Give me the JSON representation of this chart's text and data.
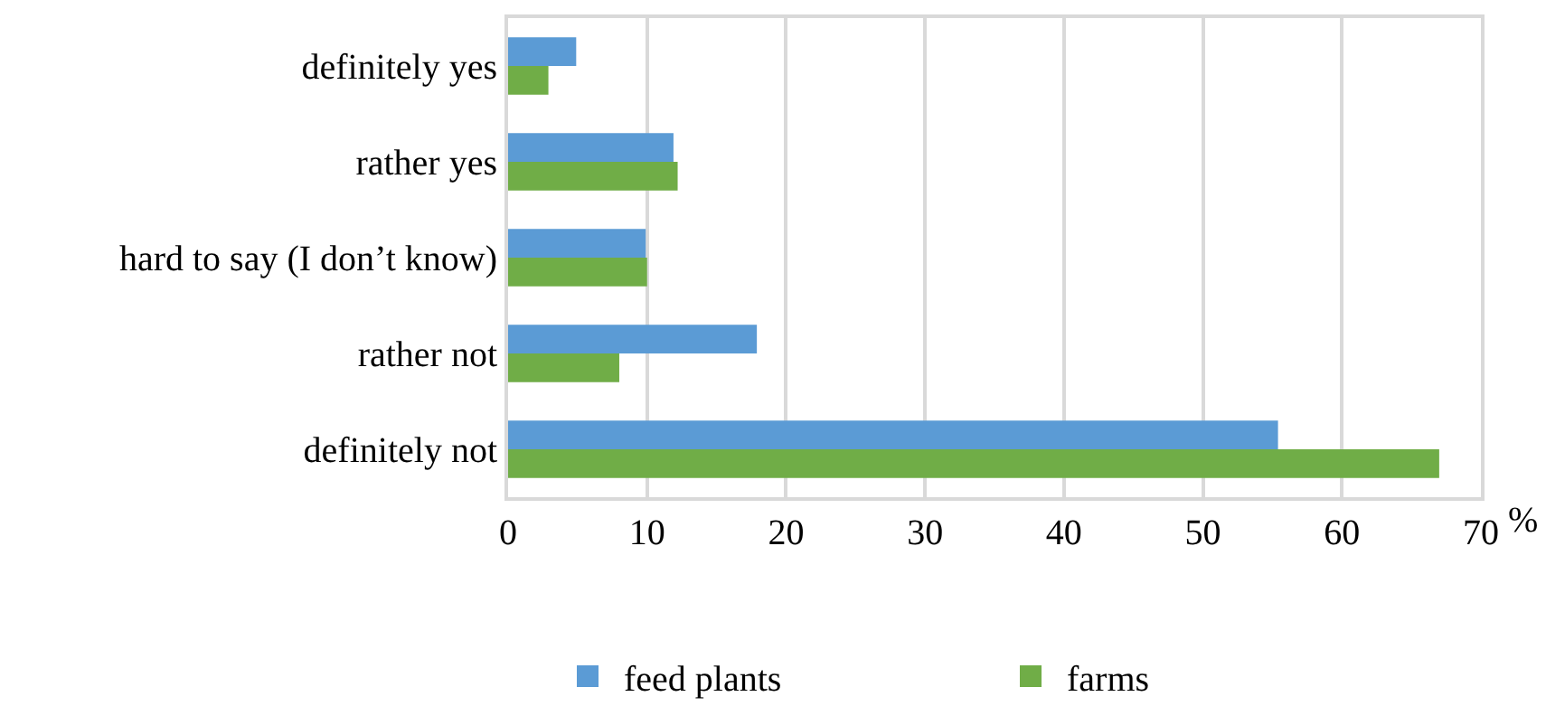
{
  "chart_data": {
    "type": "bar",
    "orientation": "horizontal",
    "categories": [
      "definitely yes",
      "rather yes",
      "hard to say (I don’t know)",
      "rather not",
      "definitely not"
    ],
    "series": [
      {
        "name": "feed plants",
        "color": "#5b9bd5",
        "values": [
          4.9,
          11.9,
          9.9,
          17.9,
          55.4
        ]
      },
      {
        "name": "farms",
        "color": "#70ad47",
        "values": [
          2.9,
          12.2,
          10.0,
          8.0,
          67.0
        ]
      }
    ],
    "xlim": [
      0,
      70
    ],
    "xticks": [
      0,
      10,
      20,
      30,
      40,
      50,
      60,
      70
    ],
    "grid": "x",
    "legend": "bottom",
    "annotations": [
      "%"
    ]
  }
}
